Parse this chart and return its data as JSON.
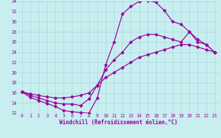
{
  "xlabel": "Windchill (Refroidissement éolien,°C)",
  "background_color": "#c8eef0",
  "grid_color": "#a8d8dc",
  "line_color": "#990099",
  "xlim": [
    -0.5,
    23.5
  ],
  "ylim": [
    12,
    34
  ],
  "xticks": [
    0,
    1,
    2,
    3,
    4,
    5,
    6,
    7,
    8,
    9,
    10,
    11,
    12,
    13,
    14,
    15,
    16,
    17,
    18,
    19,
    20,
    21,
    22,
    23
  ],
  "yticks": [
    12,
    14,
    16,
    18,
    20,
    22,
    24,
    26,
    28,
    30,
    32,
    34
  ],
  "line1_x": [
    0,
    1,
    2,
    3,
    4,
    5,
    6,
    7,
    8,
    9,
    10,
    11,
    12,
    13,
    14,
    15,
    16,
    17,
    18,
    19,
    20,
    21,
    22,
    23
  ],
  "line1_y": [
    16.2,
    15.1,
    14.5,
    13.9,
    13.3,
    12.5,
    12.3,
    12.1,
    12.0,
    15.0,
    21.5,
    26.0,
    31.5,
    33.0,
    34.0,
    34.2,
    33.8,
    32.2,
    30.0,
    29.5,
    28.0,
    26.0,
    25.5,
    24.0
  ],
  "line2_x": [
    0,
    1,
    2,
    3,
    4,
    5,
    6,
    7,
    8,
    9,
    10,
    11,
    12,
    13,
    14,
    15,
    16,
    17,
    18,
    19,
    20,
    21,
    22,
    23
  ],
  "line2_y": [
    16.2,
    15.5,
    15.0,
    14.5,
    14.0,
    13.8,
    13.8,
    13.5,
    14.8,
    17.5,
    20.5,
    22.5,
    24.0,
    26.0,
    27.0,
    27.5,
    27.5,
    27.0,
    26.5,
    26.0,
    28.0,
    26.5,
    25.5,
    24.0
  ],
  "line3_x": [
    0,
    1,
    2,
    3,
    4,
    5,
    6,
    7,
    8,
    9,
    10,
    11,
    12,
    13,
    14,
    15,
    16,
    17,
    18,
    19,
    20,
    21,
    22,
    23
  ],
  "line3_y": [
    16.2,
    15.8,
    15.5,
    15.2,
    15.0,
    15.0,
    15.2,
    15.5,
    16.0,
    17.5,
    19.0,
    20.0,
    21.0,
    22.0,
    23.0,
    23.5,
    24.0,
    24.5,
    25.0,
    25.5,
    25.5,
    25.0,
    24.5,
    24.0
  ],
  "marker": "D",
  "markersize": 2.5,
  "linewidth": 0.9,
  "axis_fontsize": 5.5,
  "tick_fontsize": 4.8
}
